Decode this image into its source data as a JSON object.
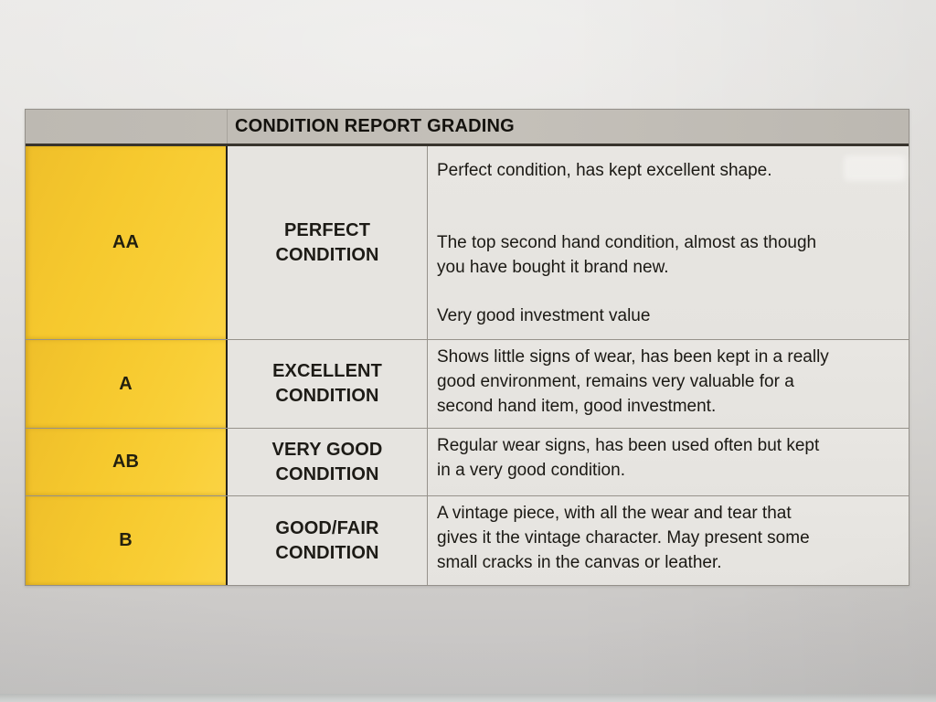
{
  "document": {
    "title": "CONDITION REPORT GRADING",
    "rows": [
      {
        "grade": "AA",
        "label": "PERFECT\nCONDITION",
        "paragraphs": [
          "Perfect condition, has kept excellent shape.",
          "The top second hand condition, almost as though\nyou have bought it brand new.",
          "Very good investment value"
        ]
      },
      {
        "grade": "A",
        "label": "EXCELLENT\nCONDITION",
        "paragraphs": [
          "Shows little signs of wear, has been kept in a really\ngood environment, remains very valuable for a\nsecond hand item, good investment."
        ]
      },
      {
        "grade": "AB",
        "label": "VERY GOOD\nCONDITION",
        "paragraphs": [
          "Regular wear signs, has been used often but kept\nin a very good condition."
        ]
      },
      {
        "grade": "B",
        "label": "GOOD/FAIR\nCONDITION",
        "paragraphs": [
          "A vintage piece, with all the wear and tear that\ngives it the vintage character. May present some\nsmall cracks in the canvas or leather."
        ]
      }
    ],
    "colors": {
      "grade_cell_yellow": "#f6c92e",
      "header_bar_gray": "#bfbbb4",
      "cell_background": "#e6e4e0",
      "grid_line": "#96928b",
      "dark_divider": "#25221c",
      "text": "#1b1914"
    }
  }
}
